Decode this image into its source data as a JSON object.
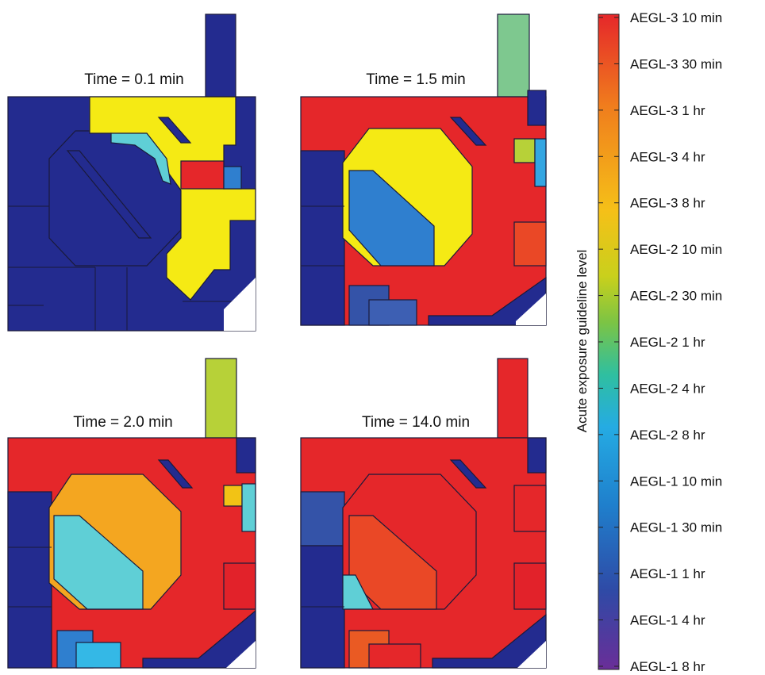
{
  "colors": {
    "navy": "#232b8f",
    "yellow": "#f5ea14",
    "cyan": "#5fcfd6",
    "red": "#e5272a",
    "red_orange": "#ea4826",
    "orange": "#f4a620",
    "amber": "#f2c315",
    "mid_blue": "#2f7fcf",
    "light_blue": "#34a6e2",
    "steel_blue": "#3453a8",
    "lime": "#b7d138",
    "mint": "#7ec88f"
  },
  "panels": [
    {
      "time_label": "Time = 0.1 min"
    },
    {
      "time_label": "Time = 1.5 min"
    },
    {
      "time_label": "Time = 2.0 min"
    },
    {
      "time_label": "Time = 14.0 min"
    }
  ],
  "colorbar": {
    "axis_label": "Acute exposure guideline level",
    "levels": [
      {
        "label": "AEGL-3  10 min",
        "color": "#e5272a"
      },
      {
        "label": "AEGL-3  30 min",
        "color": "#ec5a22"
      },
      {
        "label": "AEGL-3  1 hr",
        "color": "#f07d1d"
      },
      {
        "label": "AEGL-3  4 hr",
        "color": "#f49a1b"
      },
      {
        "label": "AEGL-3  8 hr",
        "color": "#f5b41a"
      },
      {
        "label": "AEGL-2  10 min",
        "color": "#f2cf13"
      },
      {
        "label": "AEGL-2  30 min",
        "color": "#c9d01c"
      },
      {
        "label": "AEGL-2  1 hr",
        "color": "#8dc640"
      },
      {
        "label": "AEGL-2  4 hr",
        "color": "#2fbfa0"
      },
      {
        "label": "AEGL-2  8 hr",
        "color": "#25abe3"
      },
      {
        "label": "AEGL-1  10 min",
        "color": "#1f8fd3"
      },
      {
        "label": "AEGL-1  30 min",
        "color": "#2670bf"
      },
      {
        "label": "AEGL-1  1 hr",
        "color": "#2a52ab"
      },
      {
        "label": "AEGL-1  4 hr",
        "color": "#3b3e9f"
      },
      {
        "label": "AEGL-1  8 hr",
        "color": "#5a2f97"
      }
    ]
  }
}
